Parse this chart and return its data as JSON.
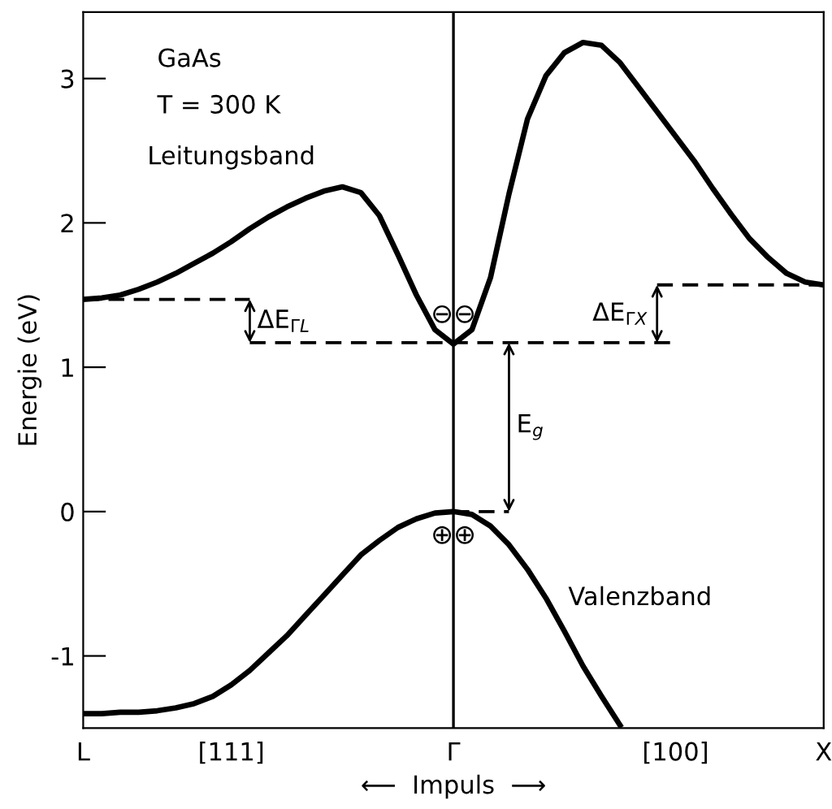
{
  "chart_data": {
    "type": "line",
    "ylabel": "Energie (eV)",
    "xlabel": "⟵  Impuls  ⟶",
    "categories": [
      "L",
      null,
      null,
      null,
      null,
      null,
      null,
      null,
      "[111]",
      null,
      null,
      null,
      null,
      null,
      null,
      null,
      null,
      null,
      null,
      null,
      "Γ",
      null,
      null,
      null,
      null,
      null,
      null,
      null,
      null,
      null,
      null,
      null,
      "[100]",
      null,
      null,
      null,
      null,
      null,
      null,
      null,
      "X"
    ],
    "ylim": [
      -1.5,
      3.46
    ],
    "yticks": [
      -1,
      0,
      1,
      2,
      3
    ],
    "grid": false,
    "legend": false,
    "marker": "none",
    "series": [
      {
        "name": "Leitungsband",
        "color": "#000000",
        "line_style": "solid",
        "values": [
          1.47,
          1.48,
          1.5,
          1.54,
          1.59,
          1.65,
          1.72,
          1.79,
          1.87,
          1.96,
          2.04,
          2.11,
          2.17,
          2.22,
          2.25,
          2.21,
          2.05,
          1.78,
          1.5,
          1.26,
          1.16,
          1.26,
          1.62,
          2.2,
          2.72,
          3.02,
          3.18,
          3.25,
          3.23,
          3.11,
          2.94,
          2.77,
          2.6,
          2.43,
          2.24,
          2.06,
          1.89,
          1.76,
          1.65,
          1.59,
          1.57
        ]
      },
      {
        "name": "Valenzband",
        "color": "#000000",
        "line_style": "solid",
        "values": [
          -1.4,
          -1.4,
          -1.39,
          -1.39,
          -1.38,
          -1.36,
          -1.33,
          -1.28,
          -1.2,
          -1.1,
          -0.98,
          -0.86,
          -0.72,
          -0.58,
          -0.44,
          -0.3,
          -0.2,
          -0.11,
          -0.05,
          -0.01,
          0,
          -0.02,
          -0.1,
          -0.23,
          -0.4,
          -0.6,
          -0.83,
          -1.07,
          -1.28,
          -1.48,
          null,
          null,
          null,
          null,
          null,
          null,
          null,
          null,
          null,
          null,
          null
        ]
      },
      {
        "color": "#000000",
        "line_style": "dashed",
        "values": [
          1.47,
          1.47,
          1.47,
          1.47,
          1.47,
          1.47,
          1.47,
          1.47,
          1.47,
          1.47,
          null,
          null,
          null,
          null,
          null,
          null,
          null,
          null,
          null,
          null,
          null,
          null,
          null,
          null,
          null,
          null,
          null,
          null,
          null,
          null,
          null,
          null,
          null,
          null,
          null,
          null,
          null,
          null,
          null,
          null,
          null
        ]
      },
      {
        "color": "#000000",
        "line_style": "dashed",
        "values": [
          null,
          null,
          null,
          null,
          null,
          null,
          null,
          null,
          null,
          1.17,
          1.17,
          1.17,
          1.17,
          1.17,
          1.17,
          1.17,
          1.17,
          1.17,
          1.17,
          1.17,
          1.17,
          1.17,
          1.17,
          1.17,
          1.17,
          1.17,
          1.17,
          1.17,
          1.17,
          1.17,
          1.17,
          1.17,
          1.17,
          null,
          null,
          null,
          null,
          null,
          null,
          null,
          null
        ]
      },
      {
        "color": "#000000",
        "line_style": "dashed",
        "values": [
          null,
          null,
          null,
          null,
          null,
          null,
          null,
          null,
          null,
          null,
          null,
          null,
          null,
          null,
          null,
          null,
          null,
          null,
          null,
          null,
          null,
          null,
          null,
          null,
          null,
          null,
          null,
          null,
          null,
          null,
          null,
          1.57,
          1.57,
          1.57,
          1.57,
          1.57,
          1.57,
          1.57,
          1.57,
          1.57,
          1.57
        ]
      },
      {
        "color": "#000000",
        "line_style": "dashed",
        "values": [
          null,
          null,
          null,
          null,
          null,
          null,
          null,
          null,
          null,
          null,
          null,
          null,
          null,
          null,
          null,
          null,
          null,
          null,
          null,
          null,
          0,
          0,
          0,
          0,
          null,
          null,
          null,
          null,
          null,
          null,
          null,
          null,
          null,
          null,
          null,
          null,
          null,
          null,
          null,
          null,
          null
        ]
      }
    ],
    "ref_lines": [
      {
        "axis": "x",
        "value": "Γ",
        "color": "#000000",
        "line_style": "solid"
      }
    ],
    "annotations": [
      "GaAs",
      "T = 300 K",
      "ΔE$_{ΓL}$",
      "E$_{g}$",
      "ΔE$_{ΓX}$",
      "⊖⊖",
      "⊕⊕"
    ]
  }
}
